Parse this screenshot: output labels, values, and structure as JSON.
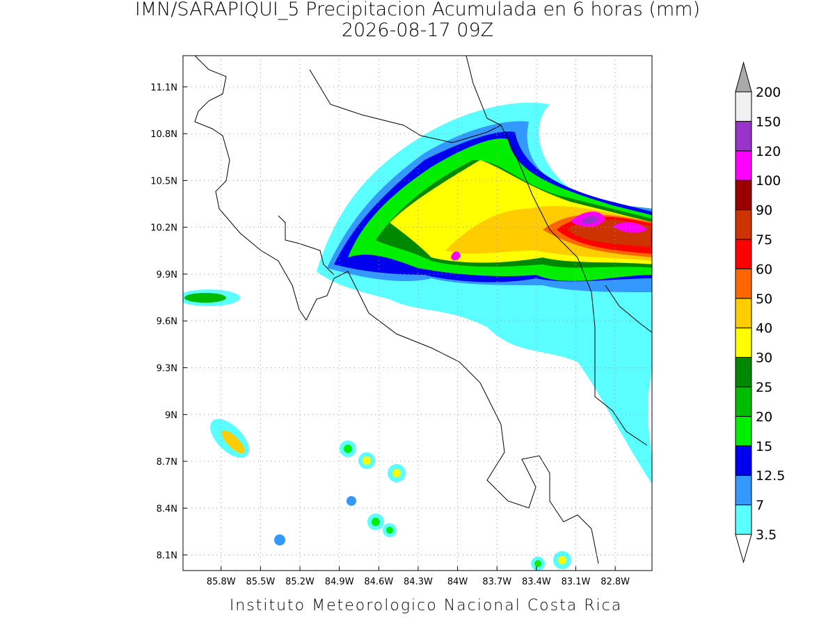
{
  "title": "IMN/SARAPIQUI_5 Precipitacion Acumulada en 6 horas (mm)",
  "subtitle": "2026-08-17 09Z",
  "footer": "Instituto Meteorologico Nacional Costa Rica",
  "map": {
    "lonlim": [
      -86.09,
      -82.52
    ],
    "latlim": [
      8.0,
      11.3
    ],
    "lat_ticks": [
      {
        "value": 11.1,
        "label": "11.1N"
      },
      {
        "value": 10.8,
        "label": "10.8N"
      },
      {
        "value": 10.5,
        "label": "10.5N"
      },
      {
        "value": 10.2,
        "label": "10.2N"
      },
      {
        "value": 9.9,
        "label": "9.9N"
      },
      {
        "value": 9.6,
        "label": "9.6N"
      },
      {
        "value": 9.3,
        "label": "9.3N"
      },
      {
        "value": 9.0,
        "label": "9N"
      },
      {
        "value": 8.7,
        "label": "8.7N"
      },
      {
        "value": 8.4,
        "label": "8.4N"
      },
      {
        "value": 8.1,
        "label": "8.1N"
      }
    ],
    "lon_ticks": [
      {
        "value": -85.8,
        "label": "85.8W"
      },
      {
        "value": -85.5,
        "label": "85.5W"
      },
      {
        "value": -85.2,
        "label": "85.2W"
      },
      {
        "value": -84.9,
        "label": "84.9W"
      },
      {
        "value": -84.6,
        "label": "84.6W"
      },
      {
        "value": -84.3,
        "label": "84.3W"
      },
      {
        "value": -84.0,
        "label": "84W"
      },
      {
        "value": -83.7,
        "label": "83.7W"
      },
      {
        "value": -83.4,
        "label": "83.4W"
      },
      {
        "value": -83.1,
        "label": "83.1W"
      },
      {
        "value": -82.8,
        "label": "82.8W"
      }
    ]
  },
  "colorbar": {
    "levels": [
      3.5,
      7,
      12.5,
      15,
      20,
      25,
      30,
      40,
      50,
      60,
      75,
      90,
      100,
      120,
      150,
      200
    ],
    "colors": [
      "#ffffff",
      "#5cffff",
      "#3399ff",
      "#0000ee",
      "#00ee00",
      "#00bb00",
      "#008800",
      "#ffff00",
      "#ffcc00",
      "#ff6600",
      "#ff0000",
      "#cc3300",
      "#990000",
      "#ff00ff",
      "#9933cc",
      "#f0f0f0",
      "#aaaaaa"
    ]
  }
}
